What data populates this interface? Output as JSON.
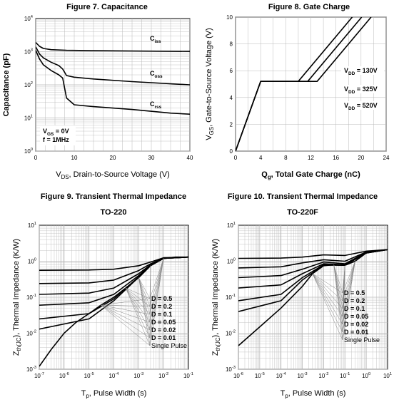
{
  "chart_data": [
    {
      "id": "fig7",
      "type": "line",
      "title": "Figure 7. Capacitance",
      "xlabel": "V_DS, Drain-to-Source Voltage (V)",
      "ylabel": "Capacitance (pF)",
      "x_scale": "linear",
      "y_scale": "log",
      "xlim": [
        0,
        40
      ],
      "ylim": [
        1,
        10000
      ],
      "x_ticks": [
        "0",
        "10",
        "20",
        "30",
        "40"
      ],
      "y_ticks": [
        "10^0",
        "10^1",
        "10^2",
        "10^3",
        "10^4"
      ],
      "grid": true,
      "conditions": [
        "V_GS = 0V",
        "f = 1MHz"
      ],
      "series": [
        {
          "name": "C_iss",
          "x": [
            0,
            1,
            2,
            4,
            8,
            15,
            25,
            40
          ],
          "y": [
            1900,
            1450,
            1250,
            1150,
            1100,
            1070,
            1050,
            1020
          ]
        },
        {
          "name": "C_oss",
          "x": [
            0,
            1,
            2,
            4,
            6,
            7,
            8,
            10,
            15,
            25,
            40
          ],
          "y": [
            1400,
            850,
            650,
            480,
            380,
            300,
            190,
            170,
            150,
            125,
            100
          ]
        },
        {
          "name": "C_rss",
          "x": [
            0,
            1,
            2,
            4,
            6,
            7,
            8,
            10,
            15,
            25,
            35,
            40
          ],
          "y": [
            1100,
            600,
            400,
            270,
            200,
            160,
            40,
            25,
            22,
            18,
            14,
            13
          ]
        }
      ]
    },
    {
      "id": "fig8",
      "type": "line",
      "title": "Figure 8. Gate Charge",
      "xlabel": "Q_g, Total Gate Charge (nC)",
      "ylabel": "V_GS, Gate-to-Source Voltage (V)",
      "xlim": [
        0,
        24
      ],
      "ylim": [
        0,
        10
      ],
      "x_ticks": [
        "0",
        "4",
        "8",
        "12",
        "16",
        "20",
        "24"
      ],
      "y_ticks": [
        "0",
        "2",
        "4",
        "6",
        "8",
        "10"
      ],
      "grid": true,
      "series": [
        {
          "name": "V_DD = 130V",
          "x": [
            0,
            4,
            10,
            18.6
          ],
          "y": [
            0,
            5.2,
            5.2,
            10
          ]
        },
        {
          "name": "V_DD = 325V",
          "x": [
            0,
            4,
            11.5,
            20.1
          ],
          "y": [
            0,
            5.2,
            5.2,
            10
          ]
        },
        {
          "name": "V_DD = 520V",
          "x": [
            0,
            4,
            13,
            21.6
          ],
          "y": [
            0,
            5.2,
            5.2,
            10
          ]
        }
      ]
    },
    {
      "id": "fig9",
      "type": "line",
      "title": "Figure 9. Transient Thermal Impedance",
      "subtitle": "TO-220",
      "xlabel": "T_p, Pulse Width (s)",
      "ylabel": "Z_th(JC), Thermal Impedance (K/W)",
      "x_scale": "log",
      "y_scale": "log",
      "xlim": [
        1e-07,
        0.1
      ],
      "ylim": [
        0.001,
        10
      ],
      "x_ticks": [
        "10^-7",
        "10^-6",
        "10^-5",
        "10^-4",
        "10^-3",
        "10^-2",
        "10^-1"
      ],
      "y_ticks": [
        "10^-3",
        "10^-2",
        "10^-1",
        "10^0",
        "10^1"
      ],
      "grid": true,
      "series": [
        {
          "name": "D = 0.5",
          "x": [
            1e-07,
            1e-05,
            0.0001,
            0.001,
            0.003,
            0.01,
            0.1
          ],
          "y": [
            0.56,
            0.57,
            0.6,
            0.75,
            0.95,
            1.25,
            1.3
          ]
        },
        {
          "name": "D = 0.2",
          "x": [
            1e-07,
            1e-05,
            0.0001,
            0.001,
            0.003,
            0.01,
            0.1
          ],
          "y": [
            0.24,
            0.25,
            0.3,
            0.55,
            0.85,
            1.22,
            1.3
          ]
        },
        {
          "name": "D = 0.1",
          "x": [
            1e-07,
            1e-05,
            0.0001,
            0.001,
            0.003,
            0.01,
            0.1
          ],
          "y": [
            0.12,
            0.13,
            0.18,
            0.45,
            0.8,
            1.2,
            1.3
          ]
        },
        {
          "name": "D = 0.05",
          "x": [
            1e-07,
            1e-05,
            0.0001,
            0.001,
            0.003,
            0.01,
            0.1
          ],
          "y": [
            0.06,
            0.07,
            0.12,
            0.4,
            0.78,
            1.2,
            1.3
          ]
        },
        {
          "name": "D = 0.02",
          "x": [
            1e-07,
            1e-05,
            0.0001,
            0.001,
            0.003,
            0.01,
            0.1
          ],
          "y": [
            0.025,
            0.035,
            0.09,
            0.37,
            0.77,
            1.2,
            1.3
          ]
        },
        {
          "name": "D = 0.01",
          "x": [
            1e-07,
            1e-05,
            0.0001,
            0.001,
            0.003,
            0.01,
            0.1
          ],
          "y": [
            0.013,
            0.025,
            0.08,
            0.36,
            0.76,
            1.2,
            1.3
          ]
        },
        {
          "name": "Single Pulse",
          "x": [
            1e-07,
            3e-07,
            1e-06,
            3e-06,
            1e-05,
            3e-05,
            0.0001,
            0.0003,
            0.001,
            0.003,
            0.01,
            0.03,
            0.1
          ],
          "y": [
            0.0012,
            0.0035,
            0.01,
            0.02,
            0.035,
            0.06,
            0.1,
            0.18,
            0.35,
            0.75,
            1.2,
            1.3,
            1.3
          ]
        }
      ]
    },
    {
      "id": "fig10",
      "type": "line",
      "title": "Figure 10. Transient Thermal Impedance",
      "subtitle": "TO-220F",
      "xlabel": "T_p, Pulse Width (s)",
      "ylabel": "Z_th(JC), Thermal Impedance (K/W)",
      "x_scale": "log",
      "y_scale": "log",
      "xlim": [
        1e-06,
        10
      ],
      "ylim": [
        0.001,
        10
      ],
      "x_ticks": [
        "10^-6",
        "10^-5",
        "10^-4",
        "10^-3",
        "10^-2",
        "10^-1",
        "10^0",
        "10^1"
      ],
      "y_ticks": [
        "10^-3",
        "10^-2",
        "10^-1",
        "10^0",
        "10^1"
      ],
      "grid": true,
      "series": [
        {
          "name": "D = 0.5",
          "x": [
            1e-06,
            0.0001,
            0.001,
            0.01,
            0.1,
            1,
            10
          ],
          "y": [
            1.2,
            1.22,
            1.3,
            1.5,
            1.45,
            1.9,
            2.1
          ]
        },
        {
          "name": "D = 0.2",
          "x": [
            1e-06,
            0.0001,
            0.001,
            0.01,
            0.1,
            1,
            10
          ],
          "y": [
            0.65,
            0.7,
            0.9,
            1.1,
            1.0,
            1.8,
            2.1
          ]
        },
        {
          "name": "D = 0.1",
          "x": [
            1e-06,
            0.0001,
            0.001,
            0.01,
            0.1,
            1,
            10
          ],
          "y": [
            0.35,
            0.4,
            0.6,
            0.95,
            0.85,
            1.75,
            2.1
          ]
        },
        {
          "name": "D = 0.05",
          "x": [
            1e-06,
            0.0001,
            0.001,
            0.01,
            0.1,
            1,
            10
          ],
          "y": [
            0.18,
            0.22,
            0.45,
            0.85,
            0.8,
            1.7,
            2.1
          ]
        },
        {
          "name": "D = 0.02",
          "x": [
            1e-06,
            0.0001,
            0.001,
            0.01,
            0.1,
            1,
            10
          ],
          "y": [
            0.08,
            0.12,
            0.35,
            0.8,
            0.78,
            1.7,
            2.1
          ]
        },
        {
          "name": "D = 0.01",
          "x": [
            1e-06,
            0.0001,
            0.001,
            0.01,
            0.1,
            1,
            10
          ],
          "y": [
            0.04,
            0.08,
            0.3,
            0.78,
            0.77,
            1.7,
            2.1
          ]
        },
        {
          "name": "Single Pulse",
          "x": [
            1e-06,
            1e-05,
            0.0001,
            0.001,
            0.003,
            0.01,
            0.03,
            0.1,
            0.3,
            1,
            10
          ],
          "y": [
            0.0045,
            0.015,
            0.05,
            0.2,
            0.45,
            0.75,
            0.8,
            0.77,
            1.0,
            1.7,
            2.1
          ]
        }
      ]
    }
  ]
}
